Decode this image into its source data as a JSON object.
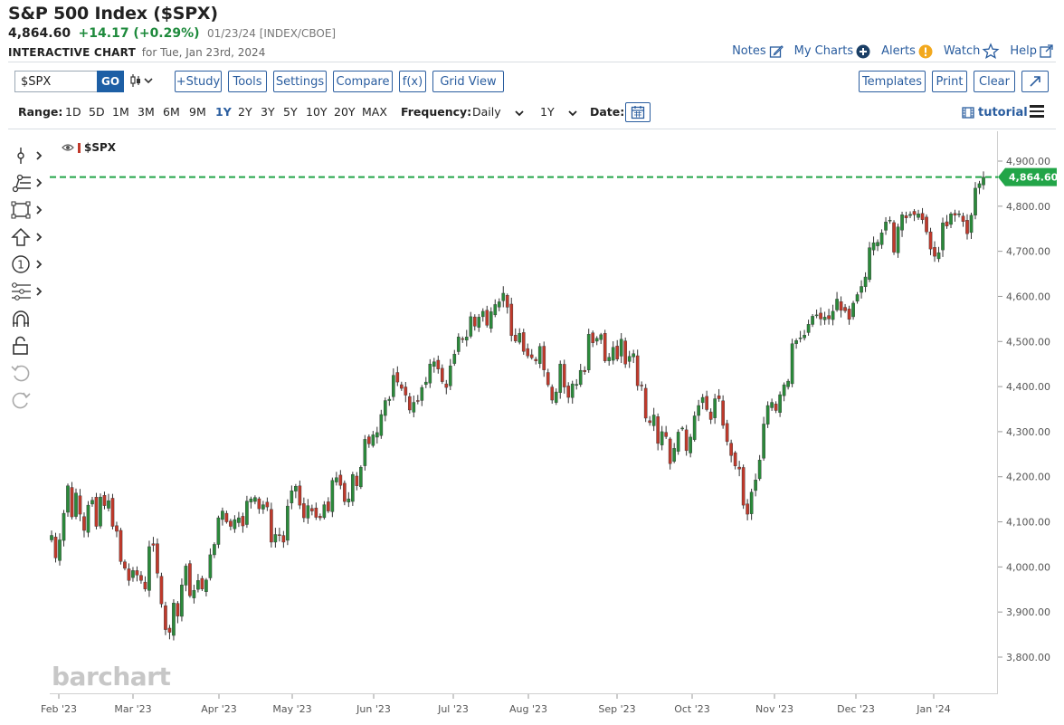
{
  "header": {
    "title": "S&P 500 Index ($SPX)",
    "last": "4,864.60",
    "change": "+14.17 (+0.29%)",
    "meta": "01/23/24 [INDEX/CBOE]",
    "chart_label": "INTERACTIVE CHART",
    "chart_for": "for Tue, Jan 23rd, 2024"
  },
  "toplinks": {
    "notes": "Notes",
    "mycharts": "My Charts",
    "alerts": "Alerts",
    "watch": "Watch",
    "help": "Help"
  },
  "toolbar": {
    "symbol_value": "$SPX",
    "go_label": "GO",
    "study_label": "+Study",
    "tools_label": "Tools",
    "settings_label": "Settings",
    "compare_label": "Compare",
    "fx_label": "f(x)",
    "gridview_label": "Grid View",
    "templates_label": "Templates",
    "print_label": "Print",
    "clear_label": "Clear"
  },
  "range_bar": {
    "range_label": "Range:",
    "ranges": [
      "1D",
      "5D",
      "1M",
      "3M",
      "6M",
      "9M",
      "1Y",
      "2Y",
      "3Y",
      "5Y",
      "10Y",
      "20Y",
      "MAX"
    ],
    "active_range": "1Y",
    "frequency_label": "Frequency:",
    "frequency_value": "Daily",
    "period_value": "1Y",
    "date_label": "Date:",
    "tutorial_label": "tutorial"
  },
  "chart": {
    "symbol_label": "$SPX",
    "brand": "barchart",
    "last_price_label": "4,864.60"
  },
  "colors": {
    "up": "#2a8a3a",
    "down": "#c0392b",
    "accent": "#2a5d9f",
    "last_line": "#22a548"
  },
  "chart_data": {
    "type": "candlestick",
    "series_name": "$SPX",
    "ylim": [
      3750,
      4950
    ],
    "y_ticks": [
      3800,
      3900,
      4000,
      4100,
      4200,
      4300,
      4400,
      4500,
      4600,
      4700,
      4800,
      4900
    ],
    "y_tick_labels": [
      "3,800.00",
      "3,900.00",
      "4,000.00",
      "4,100.00",
      "4,200.00",
      "4,300.00",
      "4,400.00",
      "4,500.00",
      "4,600.00",
      "4,700.00",
      "4,800.00",
      "4,900.00"
    ],
    "x_labels": [
      "Feb '23",
      "Mar '23",
      "Apr '23",
      "May '23",
      "Jun '23",
      "Jul '23",
      "Aug '23",
      "Sep '23",
      "Oct '23",
      "Nov '23",
      "Dec '23",
      "Jan '24"
    ],
    "last_price": 4864.6,
    "closes": [
      4070,
      4020,
      4060,
      4119,
      4180,
      4111,
      4164,
      4117,
      4081,
      4137,
      4148,
      4090,
      4155,
      4136,
      4147,
      4090,
      4079,
      4012,
      3997,
      3970,
      3992,
      3982,
      3970,
      3951,
      4045,
      4048,
      3986,
      3918,
      3861,
      3855,
      3920,
      3891,
      3960,
      4002,
      3936,
      3948,
      3970,
      3951,
      3971,
      4027,
      4050,
      4109,
      4124,
      4100,
      4090,
      4105,
      4109,
      4091,
      4146,
      4151,
      4154,
      4129,
      4138,
      4133,
      4055,
      4072,
      4071,
      4055,
      4135,
      4169,
      4179,
      4137,
      4109,
      4136,
      4124,
      4110,
      4109,
      4138,
      4124,
      4192,
      4198,
      4181,
      4145,
      4151,
      4205,
      4180,
      4221,
      4283,
      4273,
      4293,
      4298,
      4338,
      4369,
      4372,
      4425,
      4410,
      4396,
      4381,
      4348,
      4365,
      4368,
      4398,
      4410,
      4450,
      4455,
      4439,
      4411,
      4398,
      4446,
      4472,
      4510,
      4505,
      4510,
      4555,
      4534,
      4554,
      4567,
      4536,
      4566,
      4582,
      4588,
      4607,
      4576,
      4513,
      4501,
      4518,
      4478,
      4468,
      4464,
      4457,
      4489,
      4437,
      4404,
      4370,
      4388,
      4450,
      4399,
      4376,
      4406,
      4405,
      4436,
      4433,
      4516,
      4497,
      4507,
      4515,
      4457,
      4465,
      4487,
      4461,
      4505,
      4450,
      4467,
      4473,
      4402,
      4402,
      4330,
      4320,
      4337,
      4274,
      4300,
      4289,
      4229,
      4263,
      4299,
      4308,
      4258,
      4288,
      4335,
      4358,
      4376,
      4349,
      4327,
      4373,
      4373,
      4314,
      4278,
      4247,
      4224,
      4217,
      4137,
      4117,
      4166,
      4193,
      4237,
      4317,
      4358,
      4365,
      4347,
      4382,
      4404,
      4412,
      4495,
      4502,
      4508,
      4514,
      4538,
      4556,
      4559,
      4550,
      4554,
      4550,
      4567,
      4594,
      4569,
      4568,
      4549,
      4585,
      4604,
      4622,
      4643,
      4708,
      4719,
      4720,
      4741,
      4765,
      4769,
      4698,
      4754,
      4781,
      4774,
      4782,
      4781,
      4783,
      4770,
      4743,
      4705,
      4689,
      4697,
      4763,
      4756,
      4783,
      4780,
      4783,
      4766,
      4739,
      4780,
      4840,
      4850,
      4864.6
    ]
  }
}
